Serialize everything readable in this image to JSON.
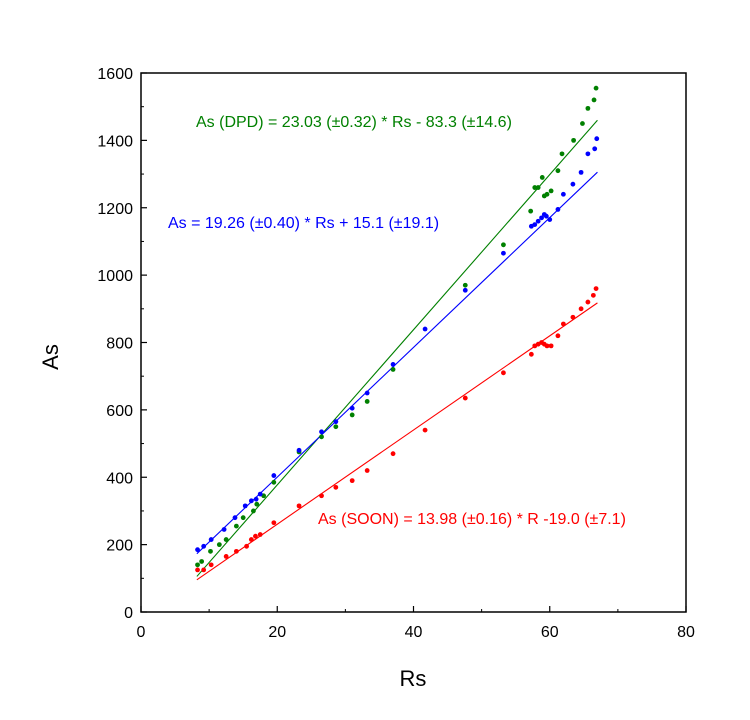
{
  "chart_data": {
    "type": "scatter",
    "xlabel": "Rs",
    "ylabel": "As",
    "xlim": [
      0,
      80
    ],
    "ylim": [
      0,
      1600
    ],
    "x_ticks": [
      "0",
      "20",
      "40",
      "60",
      "80"
    ],
    "y_ticks": [
      "0",
      "200",
      "400",
      "600",
      "800",
      "1000",
      "1200",
      "1400",
      "1600"
    ],
    "grid": false,
    "series": [
      {
        "color": "#008000",
        "fit": {
          "slope": 23.03,
          "intercept": -83.3,
          "x_range": [
            8.2,
            67
          ]
        },
        "annotation": "As (DPD) = 23.03 (±0.32) * Rs - 83.3 (±14.6)",
        "points": [
          [
            8.3,
            140
          ],
          [
            8.9,
            150
          ],
          [
            10.2,
            180
          ],
          [
            11.5,
            200
          ],
          [
            12.5,
            215
          ],
          [
            14.0,
            255
          ],
          [
            15.0,
            280
          ],
          [
            16.5,
            300
          ],
          [
            17.0,
            320
          ],
          [
            18.0,
            345
          ],
          [
            19.5,
            385
          ],
          [
            23.2,
            475
          ],
          [
            26.5,
            520
          ],
          [
            28.6,
            550
          ],
          [
            31.0,
            585
          ],
          [
            33.2,
            625
          ],
          [
            37.0,
            720
          ],
          [
            47.6,
            970
          ],
          [
            53.2,
            1090
          ],
          [
            57.2,
            1190
          ],
          [
            57.8,
            1260
          ],
          [
            58.3,
            1260
          ],
          [
            58.9,
            1290
          ],
          [
            59.2,
            1235
          ],
          [
            59.6,
            1240
          ],
          [
            60.2,
            1250
          ],
          [
            61.2,
            1310
          ],
          [
            61.8,
            1360
          ],
          [
            63.5,
            1400
          ],
          [
            64.8,
            1450
          ],
          [
            65.6,
            1495
          ],
          [
            66.5,
            1520
          ],
          [
            66.8,
            1555
          ]
        ]
      },
      {
        "color": "#0000ff",
        "fit": {
          "slope": 19.26,
          "intercept": 15.1,
          "x_range": [
            8.2,
            67
          ]
        },
        "annotation": "As = 19.26 (±0.40) * Rs + 15.1 (±19.1)",
        "points": [
          [
            8.3,
            185
          ],
          [
            9.2,
            195
          ],
          [
            10.3,
            215
          ],
          [
            12.2,
            245
          ],
          [
            13.8,
            280
          ],
          [
            15.3,
            315
          ],
          [
            16.2,
            330
          ],
          [
            16.9,
            335
          ],
          [
            17.5,
            350
          ],
          [
            19.5,
            405
          ],
          [
            23.2,
            480
          ],
          [
            26.5,
            535
          ],
          [
            28.6,
            565
          ],
          [
            31.0,
            605
          ],
          [
            33.2,
            650
          ],
          [
            37.0,
            735
          ],
          [
            41.7,
            840
          ],
          [
            47.6,
            955
          ],
          [
            53.2,
            1065
          ],
          [
            57.3,
            1145
          ],
          [
            57.8,
            1150
          ],
          [
            58.3,
            1160
          ],
          [
            58.8,
            1170
          ],
          [
            59.2,
            1180
          ],
          [
            59.5,
            1175
          ],
          [
            60.0,
            1165
          ],
          [
            61.2,
            1195
          ],
          [
            62.0,
            1240
          ],
          [
            63.4,
            1270
          ],
          [
            64.6,
            1305
          ],
          [
            65.6,
            1360
          ],
          [
            66.6,
            1375
          ],
          [
            66.9,
            1405
          ]
        ]
      },
      {
        "color": "#ff0000",
        "fit": {
          "slope": 13.98,
          "intercept": -19.0,
          "x_range": [
            8.2,
            67
          ]
        },
        "annotation": "As (SOON) = 13.98 (±0.16) * R -19.0 (±7.1)",
        "points": [
          [
            8.3,
            125
          ],
          [
            9.2,
            125
          ],
          [
            10.3,
            140
          ],
          [
            12.5,
            165
          ],
          [
            14.0,
            180
          ],
          [
            15.5,
            195
          ],
          [
            16.2,
            215
          ],
          [
            16.8,
            225
          ],
          [
            17.5,
            230
          ],
          [
            19.5,
            265
          ],
          [
            23.2,
            315
          ],
          [
            26.5,
            345
          ],
          [
            28.6,
            370
          ],
          [
            31.0,
            390
          ],
          [
            33.2,
            420
          ],
          [
            37.0,
            470
          ],
          [
            41.7,
            540
          ],
          [
            47.6,
            635
          ],
          [
            53.2,
            710
          ],
          [
            57.3,
            765
          ],
          [
            57.8,
            790
          ],
          [
            58.3,
            795
          ],
          [
            58.8,
            800
          ],
          [
            59.2,
            795
          ],
          [
            59.6,
            790
          ],
          [
            60.2,
            790
          ],
          [
            61.2,
            820
          ],
          [
            62.0,
            855
          ],
          [
            63.4,
            875
          ],
          [
            64.6,
            900
          ],
          [
            65.6,
            920
          ],
          [
            66.4,
            940
          ],
          [
            66.8,
            960
          ]
        ]
      }
    ]
  }
}
